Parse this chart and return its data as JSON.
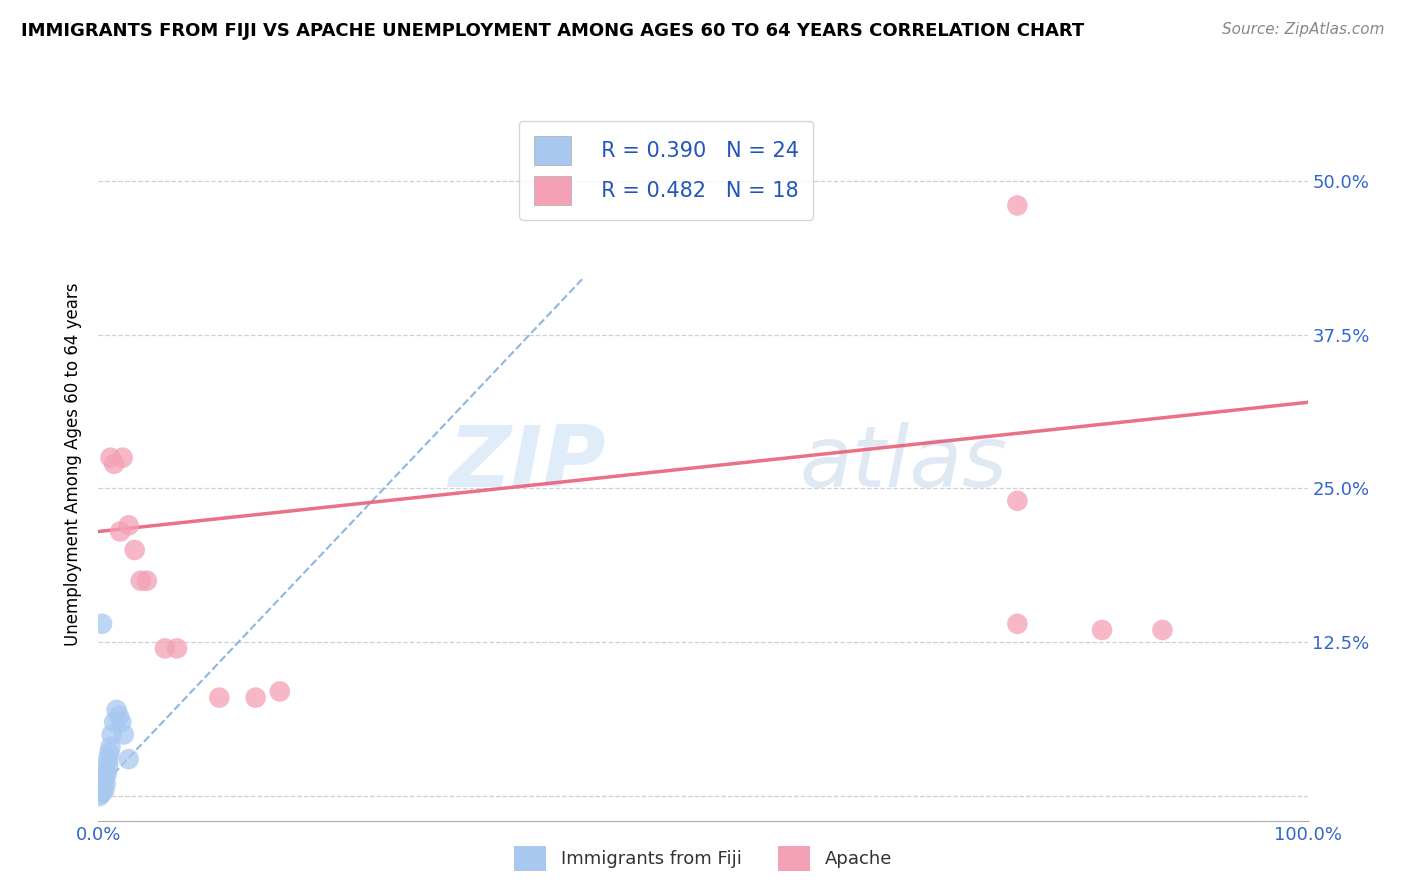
{
  "title": "IMMIGRANTS FROM FIJI VS APACHE UNEMPLOYMENT AMONG AGES 60 TO 64 YEARS CORRELATION CHART",
  "source": "Source: ZipAtlas.com",
  "ylabel": "Unemployment Among Ages 60 to 64 years",
  "xlim": [
    0.0,
    1.0
  ],
  "ylim": [
    -0.02,
    0.56
  ],
  "xticks": [
    0.0,
    0.1,
    0.2,
    0.3,
    0.4,
    0.5,
    0.6,
    0.7,
    0.8,
    0.9,
    1.0
  ],
  "xticklabels": [
    "0.0%",
    "",
    "",
    "",
    "",
    "",
    "",
    "",
    "",
    "",
    "100.0%"
  ],
  "yticks": [
    0.0,
    0.125,
    0.25,
    0.375,
    0.5
  ],
  "yticklabels": [
    "",
    "12.5%",
    "25.0%",
    "37.5%",
    "50.0%"
  ],
  "fiji_R": 0.39,
  "fiji_N": 24,
  "apache_R": 0.482,
  "apache_N": 18,
  "fiji_color": "#a8c8f0",
  "apache_color": "#f4a0b5",
  "fiji_line_color": "#7aaadd",
  "apache_line_color": "#e8607a",
  "fiji_scatter_x": [
    0.001,
    0.002,
    0.002,
    0.003,
    0.003,
    0.003,
    0.004,
    0.005,
    0.005,
    0.006,
    0.006,
    0.007,
    0.008,
    0.008,
    0.009,
    0.01,
    0.011,
    0.013,
    0.015,
    0.017,
    0.019,
    0.021,
    0.025,
    0.003
  ],
  "fiji_scatter_y": [
    0.0,
    0.002,
    0.005,
    0.003,
    0.008,
    0.012,
    0.01,
    0.005,
    0.015,
    0.01,
    0.02,
    0.018,
    0.025,
    0.03,
    0.035,
    0.04,
    0.05,
    0.06,
    0.07,
    0.065,
    0.06,
    0.05,
    0.03,
    0.14
  ],
  "apache_scatter_x": [
    0.01,
    0.013,
    0.018,
    0.02,
    0.025,
    0.03,
    0.035,
    0.04,
    0.055,
    0.065,
    0.1,
    0.13,
    0.15,
    0.76,
    0.83,
    0.88,
    0.76,
    0.76
  ],
  "apache_scatter_y": [
    0.275,
    0.27,
    0.215,
    0.275,
    0.22,
    0.2,
    0.175,
    0.175,
    0.12,
    0.12,
    0.08,
    0.08,
    0.085,
    0.48,
    0.135,
    0.135,
    0.24,
    0.14
  ],
  "fiji_line_x0": 0.0,
  "fiji_line_x1": 0.4,
  "fiji_line_y0": 0.005,
  "fiji_line_y1": 0.42,
  "apache_line_x0": 0.0,
  "apache_line_x1": 1.0,
  "apache_line_y0": 0.215,
  "apache_line_y1": 0.32,
  "watermark_zip": "ZIP",
  "watermark_atlas": "atlas",
  "background_color": "#ffffff",
  "grid_color": "#d0d0d0",
  "title_fontsize": 13,
  "source_fontsize": 11,
  "tick_fontsize": 13,
  "ylabel_fontsize": 12
}
